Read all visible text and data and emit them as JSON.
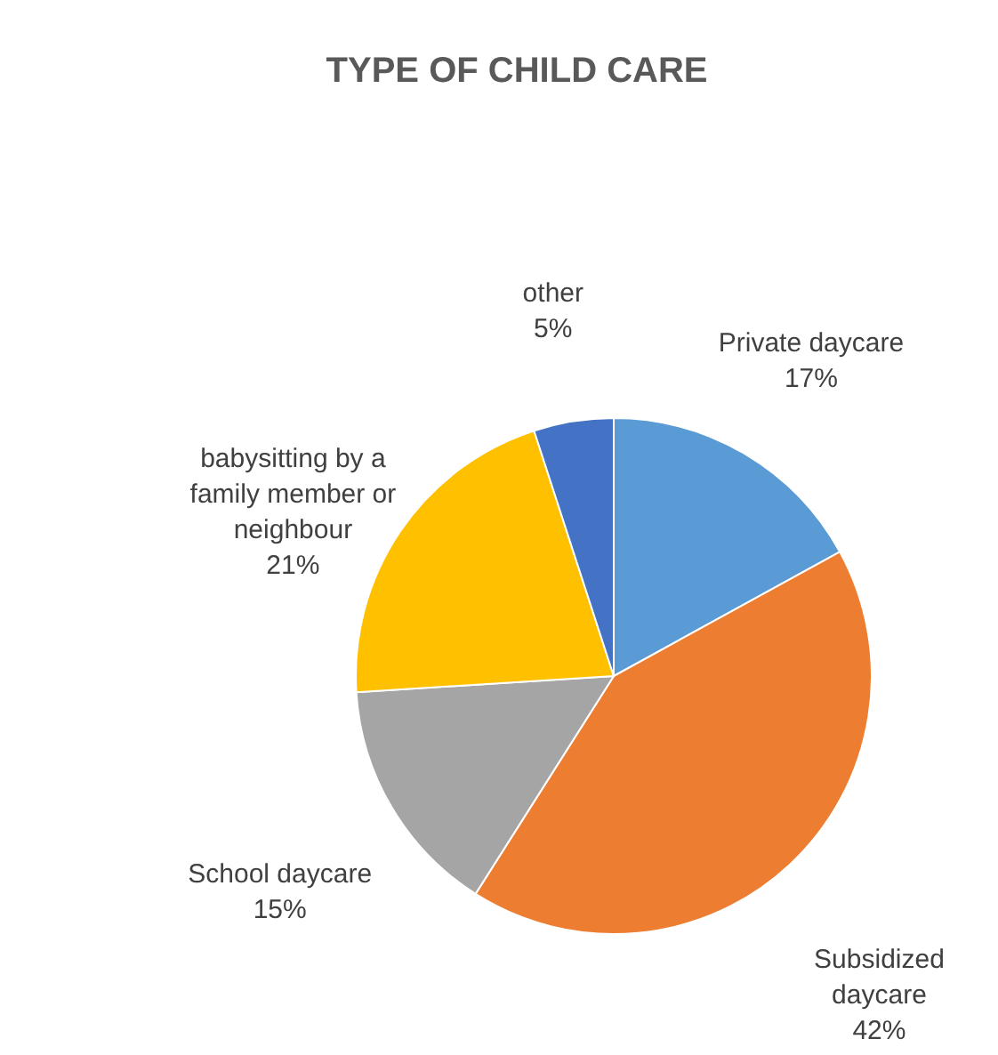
{
  "chart_data": {
    "type": "pie",
    "title": "TYPE OF CHILD CARE",
    "categories": [
      "Private daycare",
      "Subsidized daycare",
      "School daycare",
      "babysitting by a family member or neighbour",
      "other"
    ],
    "values": [
      17,
      42,
      15,
      21,
      5
    ],
    "value_labels": [
      "17%",
      "42%",
      "15%",
      "21%",
      "5%"
    ],
    "colors": [
      "#5b9bd5",
      "#ed7d31",
      "#a5a5a5",
      "#ffc000",
      "#4472c4"
    ]
  }
}
